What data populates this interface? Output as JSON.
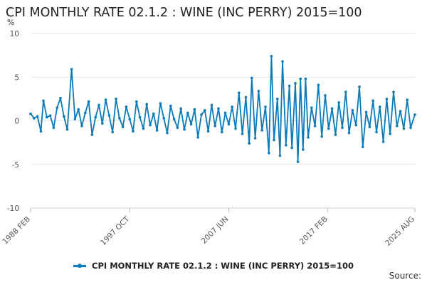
{
  "chart_data": {
    "type": "line",
    "title": "CPI MONTHLY RATE 02.1.2 : WINE (INC PERRY) 2015=100",
    "ylabel": "%",
    "xlabel": "",
    "ylim": [
      -10,
      10
    ],
    "yticks": [
      10,
      5,
      0,
      -5,
      -10
    ],
    "x_range": [
      "1988 FEB",
      "2025 AUG"
    ],
    "xticks": [
      "1988 FEB",
      "1997 OCT",
      "2007 JUN",
      "2017 FEB",
      "2025 AUG"
    ],
    "grid": "horizontal",
    "legend_position": "bottom",
    "color": "#0a7ab8",
    "series": [
      {
        "name": "CPI MONTHLY RATE 02.1.2 : WINE (INC PERRY) 2015=100",
        "points": [
          [
            "1988 FEB",
            0.8
          ],
          [
            "1988 JUN",
            0.3
          ],
          [
            "1988 OCT",
            0.5
          ],
          [
            "1989 FEB",
            -1.2
          ],
          [
            "1989 MAY",
            2.3
          ],
          [
            "1989 SEP",
            0.4
          ],
          [
            "1990 JAN",
            0.6
          ],
          [
            "1990 MAY",
            -0.8
          ],
          [
            "1990 SEP",
            1.5
          ],
          [
            "1991 JAN",
            2.6
          ],
          [
            "1991 MAY",
            0.5
          ],
          [
            "1991 SEP",
            -1.0
          ],
          [
            "1992 FEB",
            5.9
          ],
          [
            "1992 JUN",
            0.2
          ],
          [
            "1992 OCT",
            1.3
          ],
          [
            "1993 FEB",
            -0.6
          ],
          [
            "1993 JUN",
            0.9
          ],
          [
            "1993 OCT",
            2.2
          ],
          [
            "1994 FEB",
            -1.6
          ],
          [
            "1994 JUN",
            0.4
          ],
          [
            "1994 OCT",
            1.8
          ],
          [
            "1995 FEB",
            -0.3
          ],
          [
            "1995 JUN",
            2.4
          ],
          [
            "1995 OCT",
            0.6
          ],
          [
            "1996 FEB",
            -1.3
          ],
          [
            "1996 JUN",
            2.5
          ],
          [
            "1996 OCT",
            0.3
          ],
          [
            "1997 FEB",
            -0.7
          ],
          [
            "1997 JUN",
            1.6
          ],
          [
            "1997 OCT",
            0.2
          ],
          [
            "1998 FEB",
            -1.2
          ],
          [
            "1998 JUN",
            2.2
          ],
          [
            "1998 OCT",
            0.4
          ],
          [
            "1999 FEB",
            -0.9
          ],
          [
            "1999 JUN",
            1.9
          ],
          [
            "1999 OCT",
            -0.5
          ],
          [
            "2000 FEB",
            0.8
          ],
          [
            "2000 JUN",
            -1.1
          ],
          [
            "2000 OCT",
            2.0
          ],
          [
            "2001 FEB",
            0.3
          ],
          [
            "2001 JUN",
            -1.4
          ],
          [
            "2001 OCT",
            1.7
          ],
          [
            "2002 FEB",
            0.2
          ],
          [
            "2002 JUN",
            -0.8
          ],
          [
            "2002 OCT",
            1.4
          ],
          [
            "2003 FEB",
            -1.0
          ],
          [
            "2003 JUN",
            0.9
          ],
          [
            "2003 OCT",
            -0.4
          ],
          [
            "2004 FEB",
            1.3
          ],
          [
            "2004 JUN",
            -1.9
          ],
          [
            "2004 OCT",
            0.7
          ],
          [
            "2005 FEB",
            1.2
          ],
          [
            "2005 JUN",
            -1.2
          ],
          [
            "2005 OCT",
            1.8
          ],
          [
            "2006 FEB",
            -0.6
          ],
          [
            "2006 JUN",
            1.4
          ],
          [
            "2006 OCT",
            -1.3
          ],
          [
            "2007 FEB",
            0.9
          ],
          [
            "2007 JUN",
            -0.4
          ],
          [
            "2007 OCT",
            1.6
          ],
          [
            "2008 FEB",
            -0.9
          ],
          [
            "2008 JUN",
            3.2
          ],
          [
            "2008 OCT",
            -1.5
          ],
          [
            "2009 FEB",
            2.7
          ],
          [
            "2009 JUN",
            -2.6
          ],
          [
            "2009 SEP",
            4.9
          ],
          [
            "2010 JAN",
            -2.0
          ],
          [
            "2010 MAY",
            3.4
          ],
          [
            "2010 SEP",
            -1.1
          ],
          [
            "2011 JAN",
            1.6
          ],
          [
            "2011 MAY",
            -3.7
          ],
          [
            "2011 AUG",
            7.4
          ],
          [
            "2011 NOV",
            -2.2
          ],
          [
            "2012 MAR",
            2.5
          ],
          [
            "2012 JUN",
            -4.0
          ],
          [
            "2012 SEP",
            6.8
          ],
          [
            "2013 JAN",
            -2.8
          ],
          [
            "2013 MAY",
            4.0
          ],
          [
            "2013 AUG",
            -3.1
          ],
          [
            "2013 DEC",
            4.3
          ],
          [
            "2014 MAR",
            -4.7
          ],
          [
            "2014 JUN",
            4.8
          ],
          [
            "2014 SEP",
            -3.3
          ],
          [
            "2014 DEC",
            4.8
          ],
          [
            "2015 MAR",
            -1.9
          ],
          [
            "2015 JUL",
            1.5
          ],
          [
            "2015 NOV",
            -0.6
          ],
          [
            "2016 MAR",
            4.1
          ],
          [
            "2016 JUL",
            -1.8
          ],
          [
            "2016 NOV",
            2.9
          ],
          [
            "2017 MAR",
            -0.9
          ],
          [
            "2017 JUL",
            1.4
          ],
          [
            "2017 NOV",
            -1.6
          ],
          [
            "2018 MAR",
            2.1
          ],
          [
            "2018 JUL",
            -0.8
          ],
          [
            "2018 NOV",
            3.3
          ],
          [
            "2019 MAR",
            -1.4
          ],
          [
            "2019 JUL",
            1.2
          ],
          [
            "2019 NOV",
            -0.5
          ],
          [
            "2020 MAR",
            3.9
          ],
          [
            "2020 JUL",
            -3.0
          ],
          [
            "2020 NOV",
            1.0
          ],
          [
            "2021 MAR",
            -0.7
          ],
          [
            "2021 JUL",
            2.3
          ],
          [
            "2021 NOV",
            -1.3
          ],
          [
            "2022 MAR",
            1.6
          ],
          [
            "2022 JUL",
            -2.4
          ],
          [
            "2022 NOV",
            2.5
          ],
          [
            "2023 MAR",
            -1.5
          ],
          [
            "2023 JUL",
            3.3
          ],
          [
            "2023 NOV",
            -0.6
          ],
          [
            "2024 MAR",
            1.1
          ],
          [
            "2024 JUL",
            -0.9
          ],
          [
            "2024 NOV",
            2.4
          ],
          [
            "2025 MAR",
            -0.8
          ],
          [
            "2025 AUG",
            0.7
          ]
        ]
      }
    ]
  },
  "footer": {
    "source_label": "Source:"
  }
}
